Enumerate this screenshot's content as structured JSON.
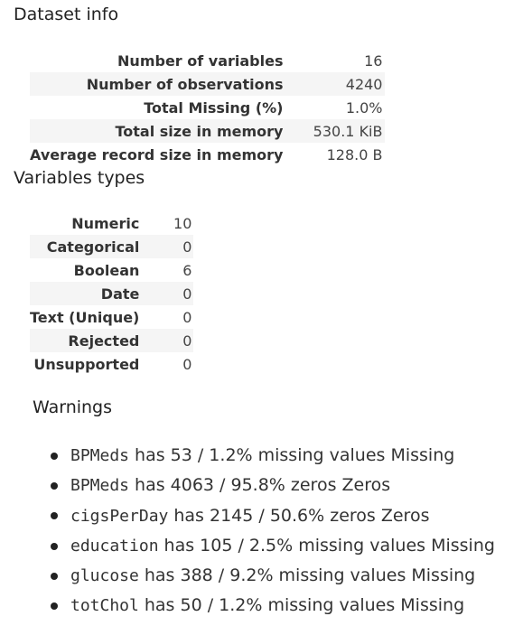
{
  "dataset_info": {
    "title": "Dataset info",
    "rows": [
      {
        "label": "Number of variables",
        "value": "16"
      },
      {
        "label": "Number of observations",
        "value": "4240"
      },
      {
        "label": "Total Missing (%)",
        "value": "1.0%"
      },
      {
        "label": "Total size in memory",
        "value": "530.1 KiB"
      },
      {
        "label": "Average record size in memory",
        "value": "128.0 B"
      }
    ]
  },
  "variable_types": {
    "title": "Variables types",
    "rows": [
      {
        "label": "Numeric",
        "value": "10"
      },
      {
        "label": "Categorical",
        "value": "0"
      },
      {
        "label": "Boolean",
        "value": "6"
      },
      {
        "label": "Date",
        "value": "0"
      },
      {
        "label": "Text (Unique)",
        "value": "0"
      },
      {
        "label": "Rejected",
        "value": "0"
      },
      {
        "label": "Unsupported",
        "value": "0"
      }
    ]
  },
  "warnings": {
    "title": "Warnings",
    "items": [
      {
        "variable": "BPMeds",
        "text": "has 53 / 1.2% missing values Missing"
      },
      {
        "variable": "BPMeds",
        "text": "has 4063 / 95.8% zeros Zeros"
      },
      {
        "variable": "cigsPerDay",
        "text": "has 2145 / 50.6% zeros Zeros"
      },
      {
        "variable": "education",
        "text": "has 105 / 2.5% missing values Missing"
      },
      {
        "variable": "glucose",
        "text": "has 388 / 9.2% missing values Missing"
      },
      {
        "variable": "totChol",
        "text": "has 50 / 1.2% missing values Missing"
      }
    ]
  }
}
